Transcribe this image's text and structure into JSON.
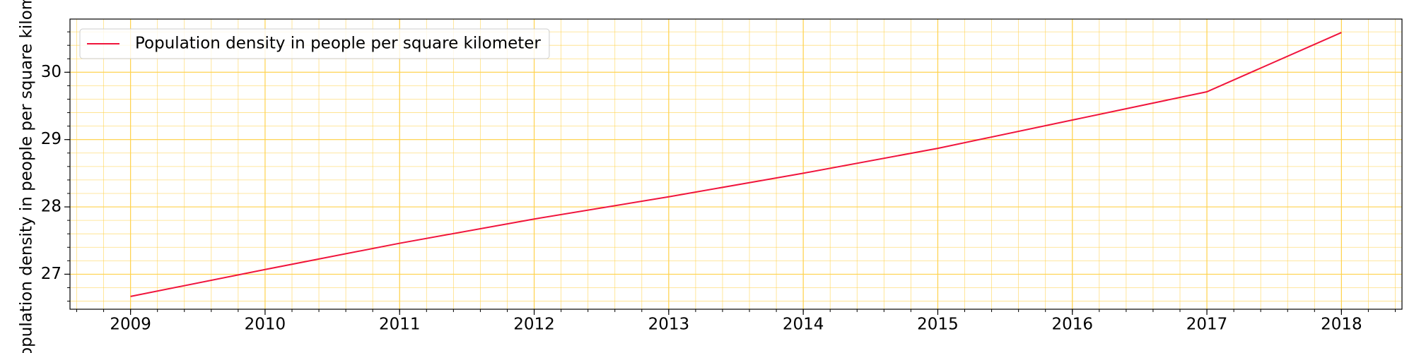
{
  "chart_data": {
    "type": "line",
    "x": [
      2009,
      2010,
      2011,
      2012,
      2013,
      2014,
      2015,
      2016,
      2017,
      2018
    ],
    "series": [
      {
        "name": "Population density in people per square kilometer",
        "color": "#f0143c",
        "values": [
          26.67,
          27.07,
          27.46,
          27.82,
          28.15,
          28.5,
          28.87,
          29.29,
          29.71,
          30.59
        ]
      }
    ],
    "y_label": "Population density in people per square kilometer",
    "xlim": [
      2008.55,
      2018.45
    ],
    "xticks": [
      2009,
      2010,
      2011,
      2012,
      2013,
      2014,
      2015,
      2016,
      2017,
      2018
    ],
    "ylim": [
      26.48,
      30.79
    ],
    "yticks": [
      27,
      28,
      29,
      30
    ],
    "grid": true,
    "grid_color": "#ffd24d",
    "minor_grid": true,
    "legend": "upper left"
  }
}
